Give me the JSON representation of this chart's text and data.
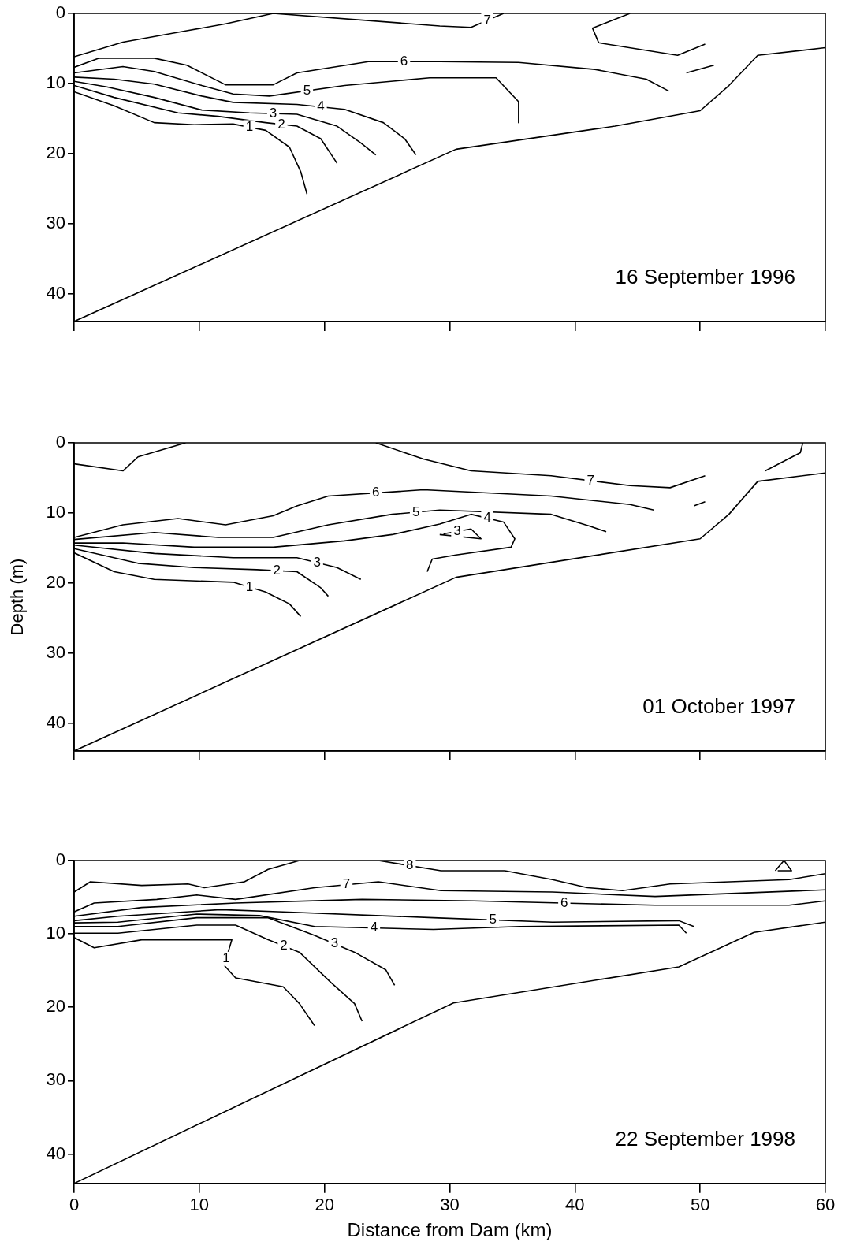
{
  "chart_data": [
    {
      "type": "line",
      "annotations": [
        "16 September 1996"
      ],
      "xlim": [
        0,
        60
      ],
      "ylim": [
        44,
        0
      ],
      "xticks": [
        {
          "value": 0,
          "label": null
        },
        {
          "value": 10,
          "label": null
        },
        {
          "value": 20,
          "label": null
        },
        {
          "value": 30,
          "label": null
        },
        {
          "value": 40,
          "label": null
        },
        {
          "value": 50,
          "label": null
        },
        {
          "value": 60,
          "label": null
        }
      ],
      "yticks": [
        0,
        10,
        20,
        30,
        40
      ],
      "tick_labels": "y",
      "legend": false,
      "grid": false,
      "marker": "none",
      "line_style": "solid",
      "series": [
        {
          "color": "#000000",
          "x": [
            0,
            30.5,
            43.2,
            50,
            52.3,
            54.6,
            60
          ],
          "values": [
            44,
            19.4,
            16.1,
            13.9,
            10.3,
            6,
            4.9
          ]
        },
        {
          "name": "7",
          "color": "#000000",
          "x": [
            0,
            3.9,
            8.9,
            12.1,
            15.9,
            29.2,
            31.7,
            34.3,
            null,
            44.4,
            41.4,
            41.9,
            48.2,
            50.4
          ],
          "values": [
            6.2,
            4.1,
            2.5,
            1.5,
            0,
            1.8,
            2,
            0,
            null,
            0,
            2.1,
            4.2,
            6,
            4.4
          ]
        },
        {
          "name": "6",
          "color": "#000000",
          "x": [
            0,
            2,
            6.4,
            9,
            12.1,
            15.9,
            17.8,
            23.5,
            29.2,
            35.5,
            41.6,
            45.7,
            47.5,
            null,
            48.9,
            51.1
          ],
          "values": [
            7.7,
            6.4,
            6.4,
            7.4,
            10.2,
            10.2,
            8.5,
            6.9,
            6.9,
            7,
            8,
            9.4,
            11.1,
            null,
            8.5,
            7.4
          ]
        },
        {
          "name": "5",
          "color": "#000000",
          "x": [
            0,
            3.9,
            6.4,
            10.2,
            12.7,
            15.6,
            21.6,
            28.4,
            33.7,
            35.5,
            35.5
          ],
          "values": [
            8.5,
            7.6,
            8.3,
            10.3,
            11.5,
            11.8,
            10.3,
            9.2,
            9.2,
            12.6,
            15.6
          ]
        },
        {
          "name": "4",
          "color": "#000000",
          "x": [
            0,
            3.2,
            6.4,
            10.2,
            12.7,
            17.8,
            21.6,
            24.7,
            26.4,
            27.3
          ],
          "values": [
            9.1,
            9.4,
            10.1,
            11.8,
            12.7,
            13,
            13.7,
            15.6,
            17.9,
            20.2
          ]
        },
        {
          "name": "3",
          "color": "#000000",
          "x": [
            0,
            2.6,
            6.4,
            10.2,
            14,
            17.8,
            21,
            22.9,
            24.1
          ],
          "values": [
            9.7,
            10.5,
            12,
            13.8,
            14.2,
            14.4,
            16.1,
            18.5,
            20.2
          ]
        },
        {
          "name": "2",
          "color": "#000000",
          "x": [
            0,
            3.2,
            8.3,
            11.5,
            15.3,
            17.8,
            19.7,
            21
          ],
          "values": [
            10.3,
            12,
            14.2,
            14.7,
            15.6,
            16.1,
            17.9,
            21.4
          ]
        },
        {
          "name": "1",
          "color": "#000000",
          "x": [
            0,
            3.2,
            6.4,
            9.6,
            12.7,
            15.3,
            17.2,
            18.1,
            18.6
          ],
          "values": [
            11.2,
            13.2,
            15.6,
            15.9,
            15.8,
            16.7,
            19.1,
            22.6,
            25.8
          ]
        }
      ]
    },
    {
      "type": "line",
      "ylabel": "Depth (m)",
      "annotations": [
        "01 October 1997"
      ],
      "xlim": [
        0,
        60
      ],
      "ylim": [
        44,
        0
      ],
      "xticks": [
        {
          "value": 0,
          "label": null
        },
        {
          "value": 10,
          "label": null
        },
        {
          "value": 20,
          "label": null
        },
        {
          "value": 30,
          "label": null
        },
        {
          "value": 40,
          "label": null
        },
        {
          "value": 50,
          "label": null
        },
        {
          "value": 60,
          "label": null
        }
      ],
      "yticks": [
        0,
        10,
        20,
        30,
        40
      ],
      "tick_labels": "y",
      "legend": false,
      "grid": false,
      "marker": "none",
      "line_style": "solid",
      "series": [
        {
          "color": "#000000",
          "x": [
            0,
            30.5,
            50,
            52.3,
            54.6,
            60
          ],
          "values": [
            44,
            19.2,
            13.7,
            10.2,
            5.5,
            4.3
          ]
        },
        {
          "name": "7",
          "color": "#000000",
          "x": [
            0,
            3.9,
            5.1,
            8.9,
            null,
            24.1,
            27.9,
            31.7,
            38.1,
            44.4,
            47.6,
            50.4,
            null,
            55.2,
            58,
            58.2
          ],
          "values": [
            3,
            4,
            2,
            0,
            null,
            0,
            2.3,
            4,
            4.7,
            6.1,
            6.4,
            4.7,
            null,
            4,
            1.4,
            0
          ]
        },
        {
          "name": "6",
          "color": "#000000",
          "x": [
            0,
            3.9,
            8.3,
            12.1,
            15.9,
            17.8,
            20.3,
            27.9,
            38.1,
            44.4,
            46.3,
            null,
            49.5,
            50.4
          ],
          "values": [
            13.5,
            11.7,
            10.8,
            11.7,
            10.4,
            9,
            7.6,
            6.7,
            7.6,
            8.8,
            9.6,
            null,
            9,
            8.4
          ]
        },
        {
          "name": "5",
          "color": "#000000",
          "x": [
            0,
            6.4,
            11.5,
            15.9,
            20.3,
            25.4,
            29.2,
            38.1,
            41.2,
            42.5
          ],
          "values": [
            13.8,
            12.8,
            13.5,
            13.5,
            11.7,
            10.2,
            9.6,
            10.2,
            11.9,
            12.7
          ]
        },
        {
          "name": "4",
          "color": "#000000",
          "x": [
            0,
            3.9,
            9.6,
            15.9,
            21.6,
            25.4,
            29.2,
            31.7,
            34.3,
            35.2,
            34.9,
            30.5,
            28.6,
            28.2
          ],
          "values": [
            14.3,
            14.3,
            14.9,
            14.9,
            14,
            13.1,
            11.6,
            10.2,
            11.3,
            13.7,
            14.9,
            16,
            16.6,
            18.4
          ]
        },
        {
          "name": "3",
          "color": "#000000",
          "x": [
            0,
            6.4,
            12.7,
            17.8,
            21,
            22.9
          ],
          "values": [
            14.6,
            15.8,
            16.4,
            16.4,
            17.8,
            19.5
          ]
        },
        {
          "name": "2",
          "color": "#000000",
          "x": [
            0,
            5.1,
            9.6,
            14.6,
            17.8,
            19.7,
            20.3
          ],
          "values": [
            15.1,
            17.2,
            17.8,
            18.1,
            18.4,
            20.7,
            21.9
          ]
        },
        {
          "name": "1",
          "color": "#000000",
          "x": [
            0,
            3.2,
            6.4,
            12.7,
            15.3,
            17.2,
            18.1
          ],
          "values": [
            15.7,
            18.4,
            19.5,
            19.9,
            21.3,
            23,
            24.8
          ]
        },
        {
          "name": "3",
          "color": "#000000",
          "x": [
            29.2,
            32.5,
            31.7,
            29.5
          ],
          "values": [
            13.1,
            13.7,
            12.3,
            13
          ]
        }
      ]
    },
    {
      "type": "line",
      "xlabel": "Distance from Dam (km)",
      "annotations": [
        "22 September 1998"
      ],
      "xlim": [
        0,
        60
      ],
      "ylim": [
        44,
        0
      ],
      "xticks": [
        0,
        10,
        20,
        30,
        40,
        50,
        60
      ],
      "yticks": [
        0,
        10,
        20,
        30,
        40
      ],
      "legend": false,
      "grid": false,
      "marker": "none",
      "line_style": "solid",
      "series": [
        {
          "color": "#000000",
          "x": [
            0,
            30.3,
            48.3,
            54.3,
            60
          ],
          "values": [
            44,
            19.4,
            14.5,
            9.8,
            8.4
          ]
        },
        {
          "name": "8",
          "color": "#000000",
          "x": [
            0,
            1.3,
            5.4,
            9.1,
            10.4,
            13.6,
            15.5,
            18,
            null,
            24.3,
            29.3,
            34.4,
            38.2,
            41,
            43.8,
            47.6,
            57.1,
            60
          ],
          "values": [
            4.3,
            2.9,
            3.4,
            3.2,
            3.7,
            2.9,
            1.2,
            0,
            null,
            0,
            1.4,
            1.4,
            2.6,
            3.7,
            4.1,
            3.2,
            2.6,
            1.8
          ]
        },
        {
          "name": "7",
          "color": "#000000",
          "x": [
            0,
            1.6,
            6.6,
            9.8,
            12.9,
            19.2,
            24.3,
            29.3,
            38.2,
            46.4,
            60
          ],
          "values": [
            7,
            5.8,
            5.3,
            4.7,
            5.3,
            3.7,
            2.9,
            4.1,
            4.3,
            4.9,
            4
          ]
        },
        {
          "name": "6",
          "color": "#000000",
          "x": [
            0,
            5.4,
            12.9,
            23,
            31.9,
            46.4,
            57.1,
            60
          ],
          "values": [
            7.6,
            6.4,
            5.8,
            5.3,
            5.5,
            6.1,
            6.1,
            5.5
          ]
        },
        {
          "name": "5",
          "color": "#000000",
          "x": [
            0,
            3.5,
            11.7,
            16.7,
            28.7,
            38.2,
            48.3,
            49.5
          ],
          "values": [
            8.2,
            7.6,
            6.7,
            7,
            7.8,
            8.4,
            8.2,
            9
          ]
        },
        {
          "name": "4",
          "color": "#000000",
          "x": [
            0,
            3.5,
            9.8,
            14.8,
            19.2,
            28.7,
            35.6,
            48.3,
            48.9
          ],
          "values": [
            8.5,
            8.4,
            7.3,
            7.5,
            9,
            9.4,
            9,
            8.8,
            9.9
          ]
        },
        {
          "name": "3",
          "color": "#000000",
          "x": [
            0,
            3.5,
            9.8,
            15.5,
            19.2,
            22.4,
            24.9,
            25.6
          ],
          "values": [
            9,
            9,
            7.8,
            7.8,
            10.2,
            12.5,
            14.9,
            17
          ]
        },
        {
          "name": "2",
          "color": "#000000",
          "x": [
            0,
            3.5,
            9.8,
            12.9,
            15.5,
            18,
            20.5,
            22.4,
            23
          ],
          "values": [
            9.9,
            9.9,
            8.8,
            8.8,
            10.8,
            12.5,
            16.6,
            19.5,
            21.9
          ]
        },
        {
          "name": "1",
          "color": "#000000",
          "x": [
            0,
            1.6,
            5.4,
            11,
            12.6,
            12.3,
            12,
            12.9,
            16.7,
            18,
            19.2
          ],
          "values": [
            10.5,
            11.9,
            10.8,
            10.8,
            10.8,
            12.5,
            14.3,
            16,
            17.2,
            19.5,
            22.5
          ]
        },
        {
          "color": "#000000",
          "x": [
            56,
            56.7,
            57.3,
            56.2
          ],
          "values": [
            1.4,
            0,
            1.4,
            1.4
          ]
        }
      ]
    }
  ]
}
